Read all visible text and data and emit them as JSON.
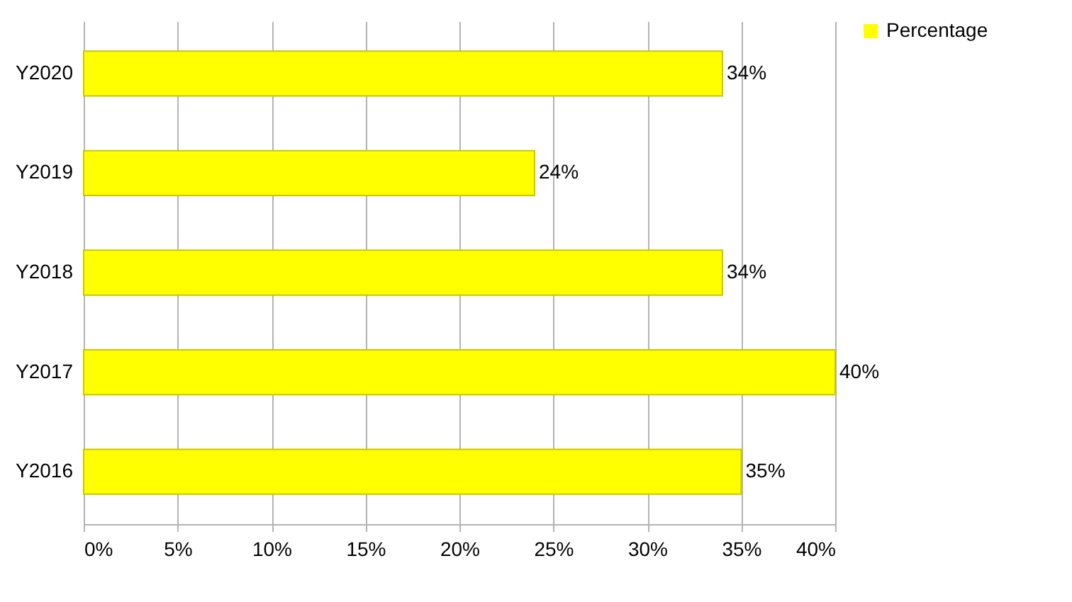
{
  "chart_data": {
    "type": "bar",
    "orientation": "horizontal",
    "categories": [
      "Y2020",
      "Y2019",
      "Y2018",
      "Y2017",
      "Y2016"
    ],
    "series": [
      {
        "name": "Percentage",
        "color": "#ffff00",
        "values": [
          34,
          24,
          34,
          40,
          35
        ],
        "value_labels": [
          "34%",
          "24%",
          "34%",
          "40%",
          "35%"
        ]
      }
    ],
    "xlim": [
      0,
      40
    ],
    "xticks": [
      {
        "value": 0,
        "label": "0%"
      },
      {
        "value": 5,
        "label": "5%"
      },
      {
        "value": 10,
        "label": "10%"
      },
      {
        "value": 15,
        "label": "15%"
      },
      {
        "value": 20,
        "label": "20%"
      },
      {
        "value": 25,
        "label": "25%"
      },
      {
        "value": 30,
        "label": "30%"
      },
      {
        "value": 35,
        "label": "35%"
      },
      {
        "value": 40,
        "label": "40%"
      }
    ],
    "grid": "x",
    "legend": "right"
  }
}
